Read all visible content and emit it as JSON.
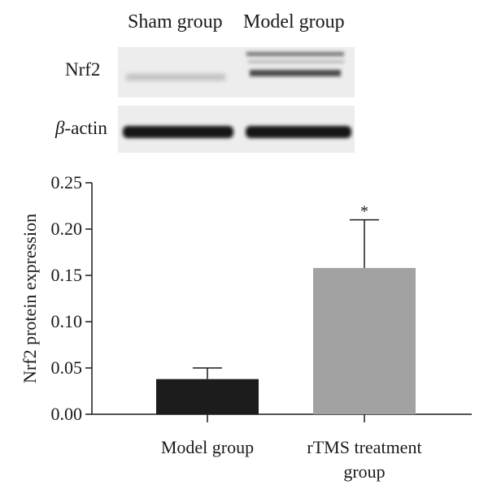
{
  "blot": {
    "lane_labels": [
      "Sham group",
      "Model group"
    ],
    "rows": [
      {
        "greek": "",
        "label": "Nrf2"
      },
      {
        "greek": "β",
        "label": "-actin"
      }
    ]
  },
  "chart_data": {
    "type": "bar",
    "categories": [
      [
        "Model group"
      ],
      [
        "rTMS treatment",
        "group"
      ]
    ],
    "values": [
      0.038,
      0.158
    ],
    "errors": [
      0.012,
      0.052
    ],
    "colors": [
      "#1c1c1c",
      "#a2a2a2"
    ],
    "significance": [
      "",
      "*"
    ],
    "ylabel": "Nrf2 protein expression",
    "ylim": [
      0,
      0.25
    ],
    "yticks": [
      "0.00",
      "0.05",
      "0.10",
      "0.15",
      "0.20",
      "0.25"
    ]
  }
}
